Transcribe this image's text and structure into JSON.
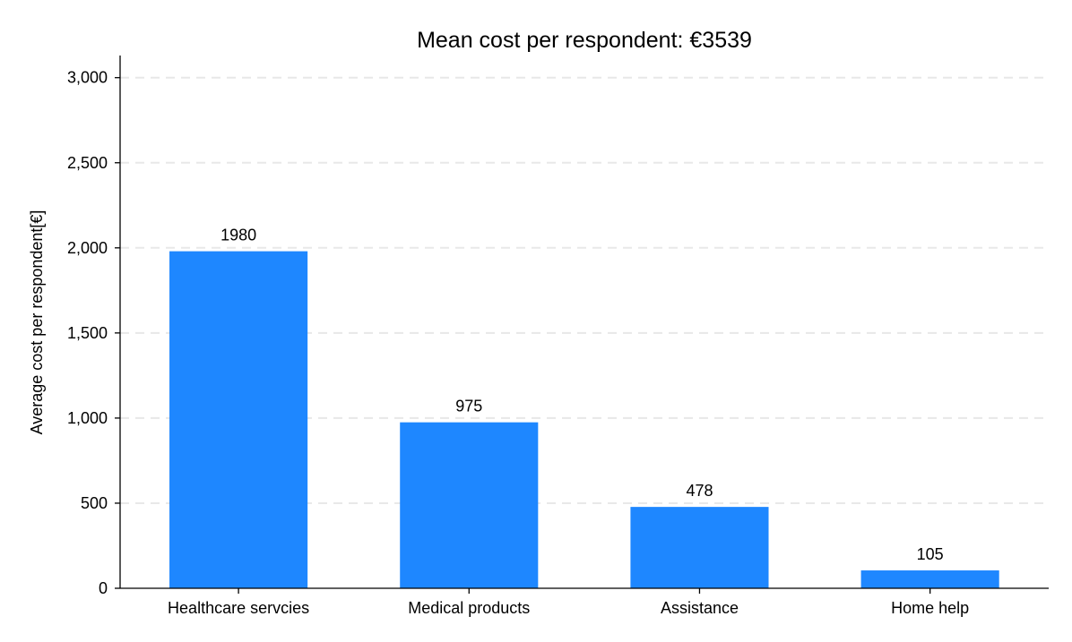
{
  "chart_data": {
    "type": "bar",
    "title": "Mean cost per respondent: €3539",
    "xlabel": "",
    "ylabel": "Average cost per respondent[€]",
    "categories": [
      "Healthcare servcies",
      "Medical products",
      "Assistance",
      "Home help"
    ],
    "values": [
      1980,
      975,
      478,
      105
    ],
    "data_labels": [
      "1980",
      "975",
      "478",
      "105"
    ],
    "ylim": [
      0,
      3130
    ],
    "yticks": [
      0,
      500,
      1000,
      1500,
      2000,
      2500,
      3000
    ],
    "ytick_labels": [
      "0",
      "500",
      "1,000",
      "1,500",
      "2,000",
      "2,500",
      "3,000"
    ],
    "grid": true,
    "legend": "none",
    "bar_color": "#1e87ff"
  }
}
